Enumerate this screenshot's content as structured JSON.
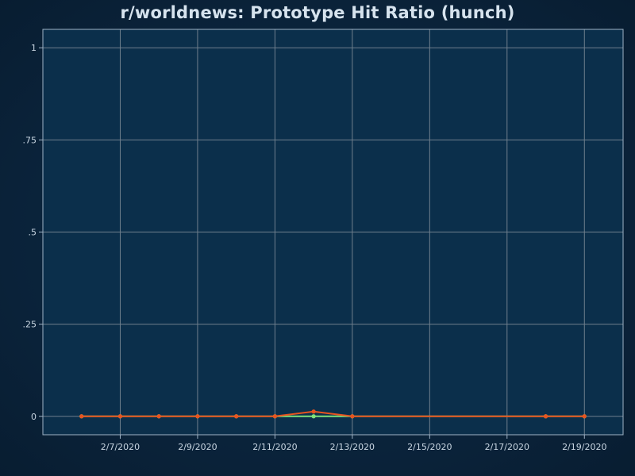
{
  "chart_data": {
    "type": "line",
    "title": "r/worldnews: Prototype Hit Ratio (hunch)",
    "xlabel": "",
    "ylabel": "",
    "ylim": [
      -0.05,
      1.05
    ],
    "yticks": [
      0,
      0.25,
      0.5,
      0.75,
      1
    ],
    "ytick_labels": [
      "0",
      ".25",
      ".5",
      ".75",
      "1"
    ],
    "xlim": [
      "2020-02-05",
      "2020-02-20"
    ],
    "xticks": [
      "2020-02-07",
      "2020-02-09",
      "2020-02-11",
      "2020-02-13",
      "2020-02-15",
      "2020-02-17",
      "2020-02-19"
    ],
    "xtick_labels": [
      "2/7/2020",
      "2/9/2020",
      "2/11/2020",
      "2/13/2020",
      "2/15/2020",
      "2/17/2020",
      "2/19/2020"
    ],
    "grid": true,
    "series": [
      {
        "color": "#7ee07a",
        "x": [
          "2020-02-06",
          "2020-02-07",
          "2020-02-08",
          "2020-02-09",
          "2020-02-10",
          "2020-02-11",
          "2020-02-12",
          "2020-02-13",
          "2020-02-18",
          "2020-02-19"
        ],
        "y": [
          0,
          0,
          0,
          0,
          0,
          0,
          0,
          0,
          0,
          0
        ]
      },
      {
        "color": "#e8531f",
        "x": [
          "2020-02-06",
          "2020-02-07",
          "2020-02-08",
          "2020-02-09",
          "2020-02-10",
          "2020-02-11",
          "2020-02-12",
          "2020-02-13",
          "2020-02-18",
          "2020-02-19"
        ],
        "y": [
          0,
          0,
          0,
          0,
          0,
          0,
          0.013,
          0,
          0,
          0
        ]
      }
    ]
  }
}
